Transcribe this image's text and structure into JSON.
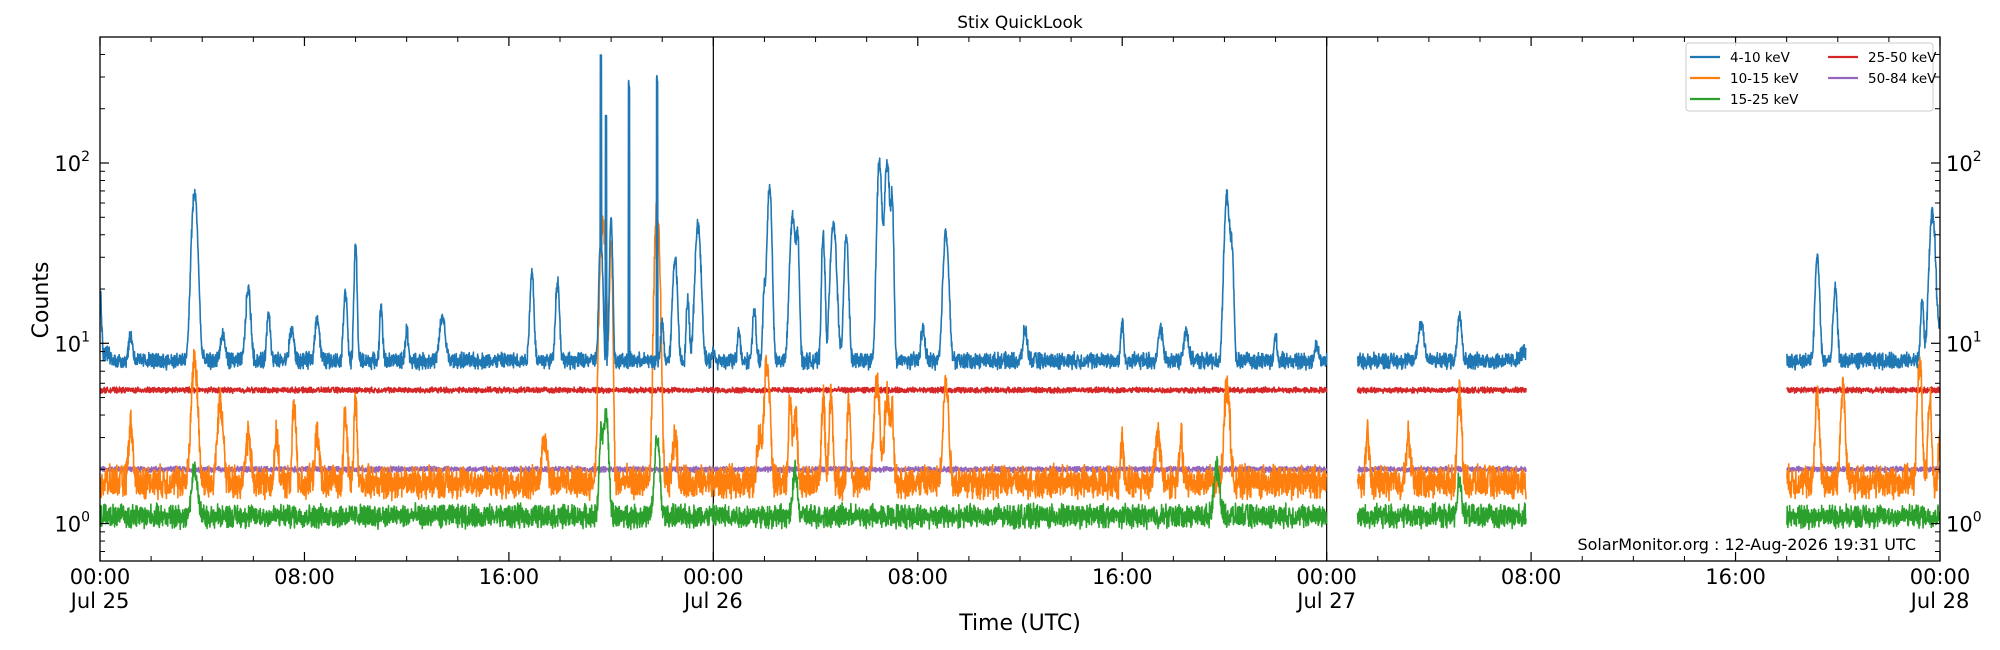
{
  "chart_data": {
    "type": "line",
    "title": "Stix QuickLook",
    "xlabel": "Time (UTC)",
    "ylabel": "Counts",
    "yscale": "log",
    "ylim": [
      0.62,
      500
    ],
    "xlim_hours": [
      0,
      72
    ],
    "x_unit": "hours since 00:00 Jul 25 (UTC)",
    "day_dividers_hours": [
      24,
      48
    ],
    "data_gaps_hours": [
      [
        48.0,
        1.2
      ],
      [
        55.8,
        10.2
      ]
    ],
    "x_ticks": [
      {
        "hour": 0,
        "time": "00:00",
        "date": "Jul 25"
      },
      {
        "hour": 8,
        "time": "08:00",
        "date": ""
      },
      {
        "hour": 16,
        "time": "16:00",
        "date": ""
      },
      {
        "hour": 24,
        "time": "00:00",
        "date": "Jul 26"
      },
      {
        "hour": 32,
        "time": "08:00",
        "date": ""
      },
      {
        "hour": 40,
        "time": "16:00",
        "date": ""
      },
      {
        "hour": 48,
        "time": "00:00",
        "date": "Jul 27"
      },
      {
        "hour": 56,
        "time": "08:00",
        "date": ""
      },
      {
        "hour": 64,
        "time": "16:00",
        "date": ""
      },
      {
        "hour": 72,
        "time": "00:00",
        "date": "Jul 28"
      }
    ],
    "y_ticks": [
      {
        "value": 1,
        "base": "10",
        "exp": "0"
      },
      {
        "value": 10,
        "base": "10",
        "exp": "1"
      },
      {
        "value": 100,
        "base": "10",
        "exp": "2"
      }
    ],
    "legend_position": "top-right",
    "series": [
      {
        "name": "4-10 keV",
        "color": "#1f77b4",
        "baseline": 8.0,
        "points": [
          [
            0,
            20
          ],
          [
            0.25,
            9
          ],
          [
            1.2,
            11
          ],
          [
            3.7,
            68
          ],
          [
            4.8,
            11
          ],
          [
            5.8,
            20
          ],
          [
            6.6,
            15
          ],
          [
            7.5,
            12
          ],
          [
            8.5,
            14
          ],
          [
            9.6,
            20
          ],
          [
            10.0,
            35
          ],
          [
            11.0,
            16
          ],
          [
            12.0,
            12
          ],
          [
            13.4,
            14
          ],
          [
            16.9,
            25
          ],
          [
            17.9,
            22
          ],
          [
            19.6,
            38
          ],
          [
            20.0,
            50
          ],
          [
            22.0,
            13
          ],
          [
            22.5,
            30
          ],
          [
            23.0,
            18
          ],
          [
            23.4,
            45
          ],
          [
            24.0,
            9
          ],
          [
            25.0,
            12
          ],
          [
            25.6,
            15
          ],
          [
            26.0,
            20
          ],
          [
            26.2,
            75
          ],
          [
            27.1,
            50
          ],
          [
            27.3,
            38
          ],
          [
            28.3,
            40
          ],
          [
            28.7,
            45
          ],
          [
            29.2,
            40
          ],
          [
            30.5,
            100
          ],
          [
            30.8,
            100
          ],
          [
            31.0,
            60
          ],
          [
            32.2,
            12
          ],
          [
            33.1,
            42
          ],
          [
            36.2,
            12
          ],
          [
            40.0,
            13
          ],
          [
            41.5,
            12
          ],
          [
            42.5,
            12
          ],
          [
            44.1,
            65
          ],
          [
            44.3,
            30
          ],
          [
            46.0,
            11
          ],
          [
            47.6,
            10
          ],
          [
            51.7,
            13
          ],
          [
            53.2,
            15
          ],
          [
            55.7,
            9
          ],
          [
            57.1,
            40
          ],
          [
            57.5,
            15
          ],
          [
            58.0,
            16
          ],
          [
            58.2,
            14
          ],
          [
            67.2,
            30
          ],
          [
            67.9,
            20
          ],
          [
            71.3,
            17
          ],
          [
            71.7,
            52
          ],
          [
            72.0,
            12
          ]
        ],
        "big_spikes": [
          [
            19.6,
            380
          ],
          [
            19.8,
            180
          ],
          [
            20.7,
            260
          ],
          [
            21.8,
            300
          ]
        ]
      },
      {
        "name": "10-15 keV",
        "color": "#ff7f0e",
        "baseline": 1.7,
        "points": [
          [
            1.2,
            3.5
          ],
          [
            3.7,
            8
          ],
          [
            4.7,
            4.5
          ],
          [
            5.8,
            3
          ],
          [
            6.9,
            3
          ],
          [
            7.6,
            4.5
          ],
          [
            8.5,
            3
          ],
          [
            9.6,
            4
          ],
          [
            10.0,
            5
          ],
          [
            17.4,
            3
          ],
          [
            19.6,
            12
          ],
          [
            19.7,
            40
          ],
          [
            20.0,
            35
          ],
          [
            21.8,
            55
          ],
          [
            22.5,
            3
          ],
          [
            25.8,
            3
          ],
          [
            26.1,
            8
          ],
          [
            27.0,
            5
          ],
          [
            27.2,
            4
          ],
          [
            28.3,
            5
          ],
          [
            28.6,
            5
          ],
          [
            29.3,
            5
          ],
          [
            30.4,
            6
          ],
          [
            30.8,
            5
          ],
          [
            31.0,
            4
          ],
          [
            33.1,
            6
          ],
          [
            40.0,
            3
          ],
          [
            41.4,
            3
          ],
          [
            42.3,
            3
          ],
          [
            44.1,
            6
          ],
          [
            49.6,
            3
          ],
          [
            51.2,
            3
          ],
          [
            53.2,
            5
          ],
          [
            57.1,
            4
          ],
          [
            57.7,
            3
          ],
          [
            68.2,
            6
          ],
          [
            67.2,
            5
          ],
          [
            71.2,
            8
          ],
          [
            71.6,
            5
          ],
          [
            72.0,
            3
          ]
        ]
      },
      {
        "name": "15-25 keV",
        "color": "#2ca02c",
        "baseline": 1.1,
        "points": [
          [
            3.7,
            2
          ],
          [
            19.6,
            3
          ],
          [
            19.8,
            4
          ],
          [
            21.8,
            3
          ],
          [
            27.2,
            2
          ],
          [
            43.7,
            2
          ],
          [
            53.2,
            1.8
          ]
        ]
      },
      {
        "name": "25-50 keV",
        "color": "#d62728",
        "baseline": 5.5,
        "points": []
      },
      {
        "name": "50-84 keV",
        "color": "#9467bd",
        "baseline": 2.0,
        "points": []
      }
    ]
  },
  "watermark": "SolarMonitor.org : 12-Aug-2026 19:31 UTC"
}
